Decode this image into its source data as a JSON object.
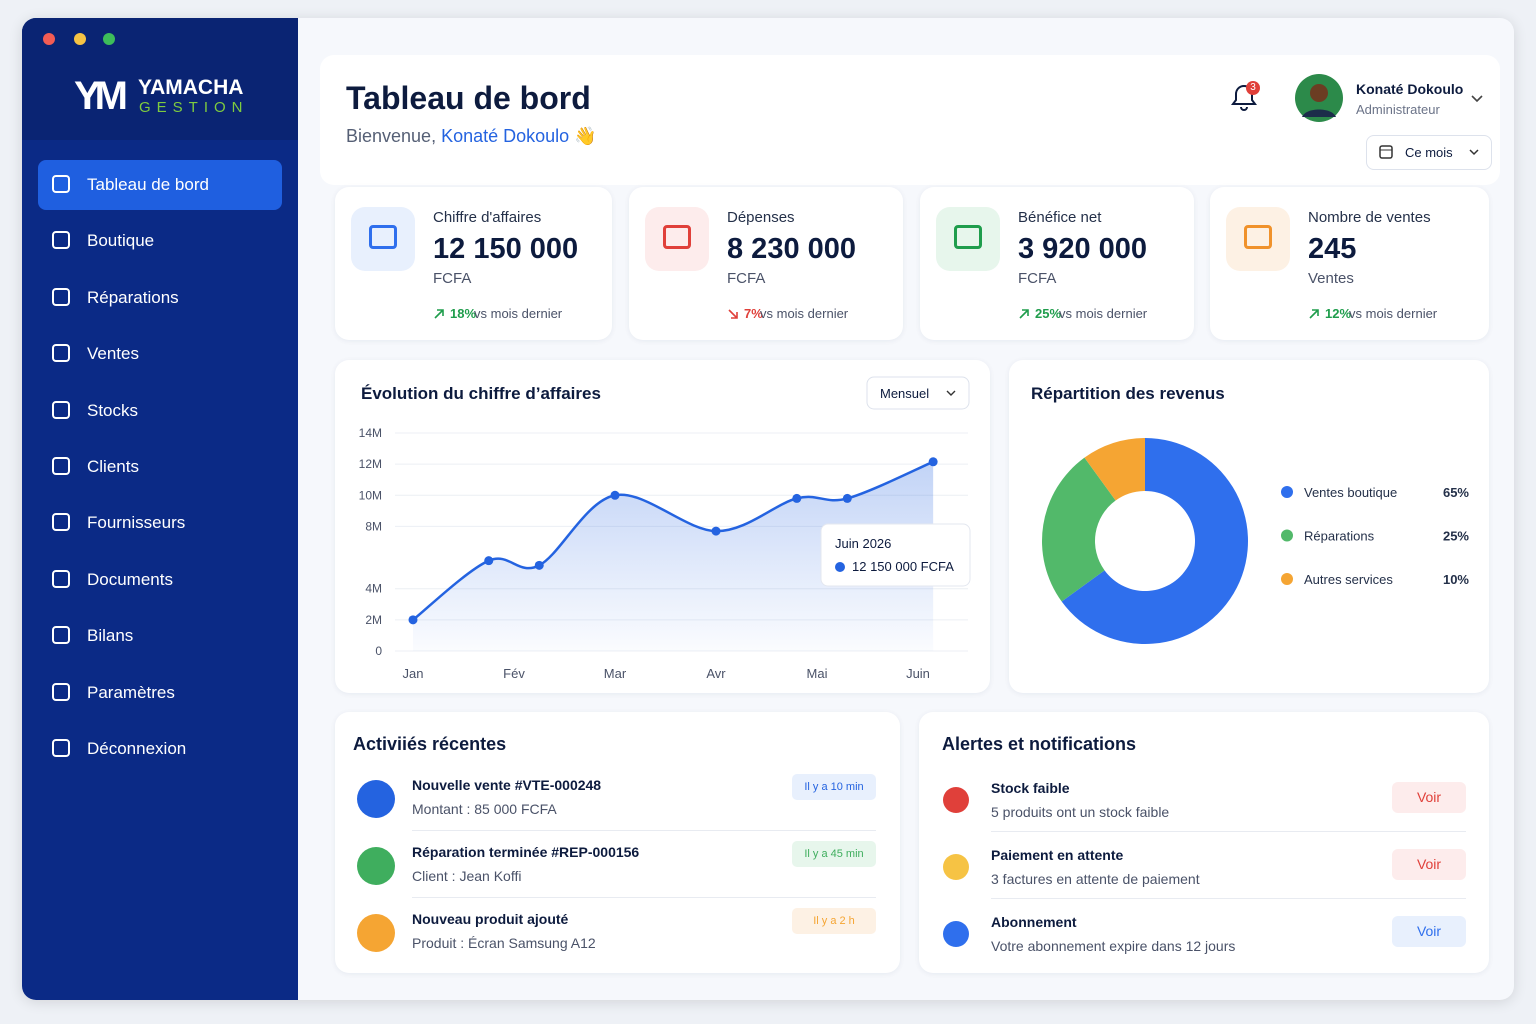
{
  "sidebar": {
    "brand": "YAMACHA",
    "brand_sub": "GESTION",
    "logo": "YM",
    "menu": [
      "Tableau de bord",
      "Boutique",
      "Réparations",
      "Ventes",
      "Stocks",
      "Clients",
      "Fournisseurs",
      "Documents",
      "Bilans",
      "Paramètres",
      "Déconnexion"
    ]
  },
  "header": {
    "title": "Tableau de bord",
    "greeting": "Bienvenue,",
    "user_name": "Konaté Dokoulo",
    "wave": "👋",
    "notification_count": 3,
    "profile_name": "Konaté Dokoulo",
    "profile_role": "Administrateur",
    "period": "Ce mois"
  },
  "kpis": [
    {
      "label": "Chiffre d'affaires",
      "value": "12 150 000",
      "unit": "FCFA",
      "change": "18%",
      "change_text": "vs mois dernier",
      "color": "#1f9d4c",
      "icon_color": "#2f6fed",
      "icon_bg": "#e8f0fd"
    },
    {
      "label": "Dépenses",
      "value": "8 230 000",
      "unit": "FCFA",
      "change": "7%",
      "change_text": "vs mois dernier",
      "color": "#e0403a",
      "icon_color": "#e0403a",
      "icon_bg": "#fdecec"
    },
    {
      "label": "Bénéfice net",
      "value": "3 920 000",
      "unit": "FCFA",
      "change": "25%",
      "change_text": "vs mois dernier",
      "color": "#1f9d4c",
      "icon_color": "#1f9d4c",
      "icon_bg": "#e7f6ec"
    },
    {
      "label": "Nombre de ventes",
      "value": "245",
      "unit": "Ventes",
      "change": "12%",
      "change_text": "vs mois dernier",
      "color": "#1f9d4c",
      "icon_color": "#f0922b",
      "icon_bg": "#fdf1e4"
    }
  ],
  "chart_data": [
    {
      "type": "line",
      "title": "Évolution du chiffre d’affaires",
      "period_select": "Mensuel",
      "x": [
        0,
        0.75,
        1.25,
        2,
        3,
        3.8,
        4.3,
        5.15
      ],
      "values": [
        2,
        5.8,
        5.5,
        10,
        7.7,
        9.8,
        9.8,
        12.15
      ],
      "color": "#2463e0",
      "xlim": [
        0,
        5.5
      ],
      "xticks": [
        {
          "value": 0,
          "label": "Jan"
        },
        {
          "value": 1,
          "label": "Fév"
        },
        {
          "value": 2,
          "label": "Mar"
        },
        {
          "value": 3,
          "label": "Avr"
        },
        {
          "value": 4,
          "label": "Mai"
        },
        {
          "value": 5,
          "label": "Juin"
        }
      ],
      "ylim": [
        0,
        14
      ],
      "yticks": [
        0,
        {
          "value": 2,
          "label": "2M"
        },
        {
          "value": 4,
          "label": "4M"
        },
        {
          "value": 8,
          "label": "8M"
        },
        {
          "value": 10,
          "label": "10M"
        },
        {
          "value": 12,
          "label": "12M"
        },
        {
          "value": 14,
          "label": "14M"
        }
      ],
      "grid": true,
      "tooltip": {
        "title": "Juin 2026",
        "text": "12 150 000 FCFA"
      }
    },
    {
      "type": "pie",
      "title": "Répartition des revenus",
      "donut": true,
      "categories": [
        "Ventes boutique",
        "Réparations",
        "Autres services"
      ],
      "values": [
        65,
        25,
        10
      ],
      "value_labels": [
        "65%",
        "25%",
        "10%"
      ],
      "colors": [
        "#2f6fed",
        "#52b96a",
        "#f5a533"
      ]
    }
  ],
  "activities": {
    "title": "Activiiés récentes",
    "items": [
      {
        "title": "Nouvelle vente #VTE-000248",
        "detail": "Montant : 85 000 FCFA",
        "time": "Il y a 10 min",
        "color": "#2463e0",
        "badge_bg": "#e8f0fd"
      },
      {
        "title": "Réparation terminée #REP-000156",
        "detail": "Client : Jean Koffi",
        "time": "Il y a 45 min",
        "color": "#3fae5e",
        "badge_bg": "#e7f6ec"
      },
      {
        "title": "Nouveau produit ajouté",
        "detail": "Produit : Écran Samsung A12",
        "time": "Il y a 2 h",
        "color": "#f5a533",
        "badge_bg": "#fdf1e4"
      }
    ]
  },
  "alerts": {
    "title": "Alertes et notifications",
    "items": [
      {
        "title": "Stock faible",
        "detail": "5 produits ont un stock faible",
        "action": "Voir",
        "color": "#e0403a",
        "button_bg": "#fdecec"
      },
      {
        "title": "Paiement en attente",
        "detail": "3 factures en attente de paiement",
        "action": "Voir",
        "color": "#e0403a",
        "button_bg": "#fdecec"
      },
      {
        "title": "Abonnement",
        "detail": "Votre abonnement expire dans 12 jours",
        "action": "Voir",
        "color": "#2f6fed",
        "button_bg": "#e8f0fd"
      }
    ]
  }
}
